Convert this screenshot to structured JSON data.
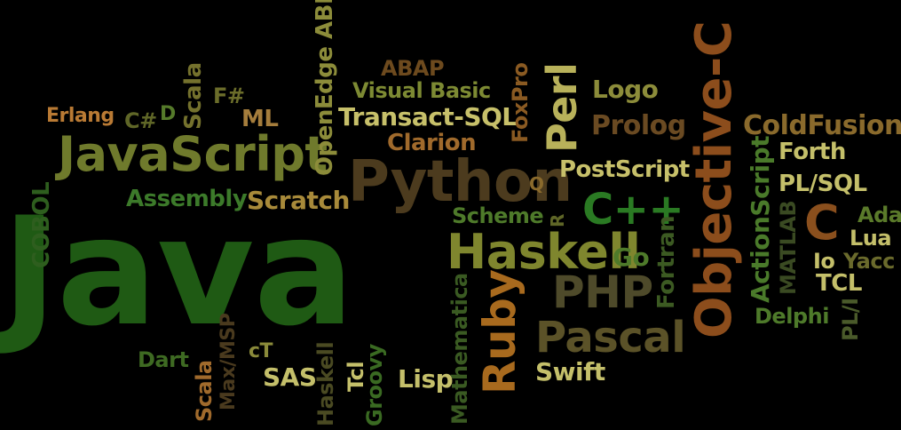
{
  "image": {
    "background_color": "#000000",
    "words": [
      {
        "text": "Java",
        "color": "#1f5a14"
      },
      {
        "text": "JavaScript",
        "color": "#6f7a2c"
      },
      {
        "text": "Python",
        "color": "#4c3b1e"
      },
      {
        "text": "Objective-C",
        "color": "#8c4d1c"
      },
      {
        "text": "Haskell",
        "color": "#7f862e"
      },
      {
        "text": "Pascal",
        "color": "#5b5228"
      },
      {
        "text": "PHP",
        "color": "#4e4a2a"
      },
      {
        "text": "Ruby",
        "color": "#a86a1e"
      },
      {
        "text": "Perl",
        "color": "#b8b15a"
      },
      {
        "text": "C++",
        "color": "#2a7a23"
      },
      {
        "text": "C",
        "color": "#8a4f1d"
      },
      {
        "text": "Erlang",
        "color": "#b97a34"
      },
      {
        "text": "C#",
        "color": "#5f6627"
      },
      {
        "text": "D",
        "color": "#557a2a"
      },
      {
        "text": "Scala",
        "color": "#74712d"
      },
      {
        "text": "F#",
        "color": "#6b6d2a"
      },
      {
        "text": "ML",
        "color": "#a57d3c"
      },
      {
        "text": "OpenEdge ABL",
        "color": "#8c8c3a"
      },
      {
        "text": "ABAP",
        "color": "#6d4a1e"
      },
      {
        "text": "Visual Basic",
        "color": "#7d8a33"
      },
      {
        "text": "Transact-SQL",
        "color": "#c7c06a"
      },
      {
        "text": "Clarion",
        "color": "#a06a2c"
      },
      {
        "text": "FoxPro",
        "color": "#8a5a22"
      },
      {
        "text": "Logo",
        "color": "#8c8c3a"
      },
      {
        "text": "Prolog",
        "color": "#6a4a22"
      },
      {
        "text": "ColdFusion",
        "color": "#8a6a2c"
      },
      {
        "text": "Forth",
        "color": "#c4bf6a"
      },
      {
        "text": "Assembly",
        "color": "#3c7a2a"
      },
      {
        "text": "Scratch",
        "color": "#a88a3a"
      },
      {
        "text": "PostScript",
        "color": "#c7c06a"
      },
      {
        "text": "PL/SQL",
        "color": "#c4bf6a"
      },
      {
        "text": "COBOL",
        "color": "#2e5e1e"
      },
      {
        "text": "Scheme",
        "color": "#4e7a2a"
      },
      {
        "text": "Q",
        "color": "#8a6a2c"
      },
      {
        "text": "R",
        "color": "#5f6627"
      },
      {
        "text": "ActionScript",
        "color": "#4a7a2a"
      },
      {
        "text": "MATLAB",
        "color": "#3a4a22"
      },
      {
        "text": "Ada",
        "color": "#5a7a2a"
      },
      {
        "text": "Lua",
        "color": "#c4bf6a"
      },
      {
        "text": "Io",
        "color": "#c4bf6a"
      },
      {
        "text": "Yacc",
        "color": "#6a6a2c"
      },
      {
        "text": "Go",
        "color": "#4e7a2a"
      },
      {
        "text": "Fortran",
        "color": "#3c5a22"
      },
      {
        "text": "TCL",
        "color": "#c4bf6a"
      },
      {
        "text": "Delphi",
        "color": "#4e7a2a"
      },
      {
        "text": "PL/I",
        "color": "#4a5a2a"
      },
      {
        "text": "Mathematica",
        "color": "#3a5a22"
      },
      {
        "text": "Dart",
        "color": "#3e6a22"
      },
      {
        "text": "Max/MSP",
        "color": "#4a3a1e"
      },
      {
        "text": "cT",
        "color": "#8a8a3a"
      },
      {
        "text": "SAS",
        "color": "#c4bf6a"
      },
      {
        "text": "Haskell",
        "color": "#4a4a22"
      },
      {
        "text": "Tcl",
        "color": "#c4bf6a"
      },
      {
        "text": "Groovy",
        "color": "#3a6a22"
      },
      {
        "text": "Lisp",
        "color": "#c4bf6a"
      },
      {
        "text": "Swift",
        "color": "#c4bf6a"
      },
      {
        "text": "Scala",
        "color": "#a06a2c"
      }
    ]
  }
}
